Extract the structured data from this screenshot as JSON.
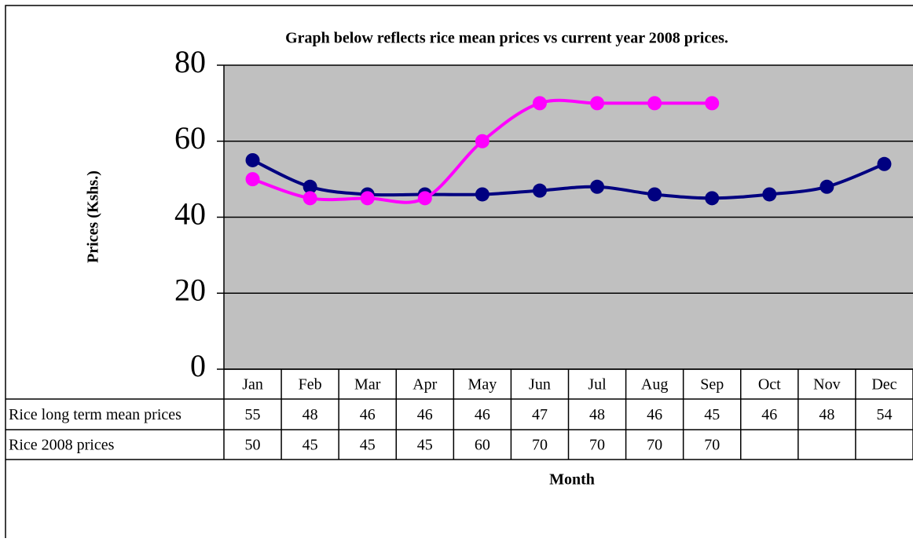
{
  "chart_data": {
    "type": "line",
    "title": "Graph below reflects rice mean prices vs current year 2008 prices.",
    "y_label": "Prices (Kshs.)",
    "x_label": "Month",
    "categories": [
      "Jan",
      "Feb",
      "Mar",
      "Apr",
      "May",
      "Jun",
      "Jul",
      "Aug",
      "Sep",
      "Oct",
      "Nov",
      "Dec"
    ],
    "series": [
      {
        "name": "Rice long term mean prices",
        "color": "#000080",
        "values": [
          55,
          48,
          46,
          46,
          46,
          47,
          48,
          46,
          45,
          46,
          48,
          54
        ]
      },
      {
        "name": "Rice 2008 prices",
        "color": "#FF00FF",
        "values": [
          50,
          45,
          45,
          45,
          60,
          70,
          70,
          70,
          70,
          null,
          null,
          null
        ]
      }
    ],
    "ylim": [
      0,
      80
    ],
    "yticks": [
      0,
      20,
      40,
      60,
      80
    ],
    "grid": true,
    "smooth": true,
    "data_table": true
  }
}
